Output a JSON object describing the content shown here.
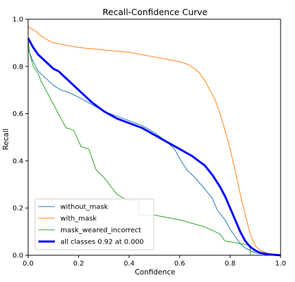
{
  "chart_data": {
    "type": "line",
    "title": "Recall-Confidence Curve",
    "xlabel": "Confidence",
    "ylabel": "Recall",
    "xlim": [
      0,
      1
    ],
    "ylim": [
      0,
      1
    ],
    "xticks": [
      "0.0",
      "0.2",
      "0.4",
      "0.6",
      "0.8",
      "1.0"
    ],
    "yticks": [
      "0.0",
      "0.2",
      "0.4",
      "0.6",
      "0.8",
      "1.0"
    ],
    "grid": false,
    "legend_position": "lower-left",
    "series": [
      {
        "name": "without_mask",
        "color": "#1f77b4",
        "width": 1,
        "x": [
          0.0,
          0.005,
          0.02,
          0.04,
          0.06,
          0.08,
          0.1,
          0.13,
          0.16,
          0.2,
          0.25,
          0.3,
          0.35,
          0.4,
          0.45,
          0.5,
          0.55,
          0.58,
          0.6,
          0.63,
          0.66,
          0.7,
          0.73,
          0.75,
          0.78,
          0.8,
          0.82,
          0.84,
          0.86,
          0.88,
          0.9,
          0.92,
          0.95,
          1.0
        ],
        "y": [
          0.87,
          0.86,
          0.82,
          0.78,
          0.76,
          0.74,
          0.72,
          0.7,
          0.69,
          0.67,
          0.64,
          0.61,
          0.59,
          0.57,
          0.55,
          0.52,
          0.48,
          0.45,
          0.41,
          0.36,
          0.33,
          0.28,
          0.24,
          0.19,
          0.15,
          0.11,
          0.08,
          0.05,
          0.03,
          0.02,
          0.01,
          0.006,
          0.003,
          0.0
        ]
      },
      {
        "name": "with_mask",
        "color": "#ff7f0e",
        "width": 1,
        "x": [
          0.0,
          0.01,
          0.03,
          0.05,
          0.08,
          0.1,
          0.15,
          0.2,
          0.25,
          0.3,
          0.35,
          0.4,
          0.45,
          0.5,
          0.55,
          0.6,
          0.63,
          0.66,
          0.68,
          0.7,
          0.72,
          0.74,
          0.76,
          0.78,
          0.8,
          0.82,
          0.84,
          0.86,
          0.88,
          0.9,
          0.92,
          0.95,
          1.0
        ],
        "y": [
          0.97,
          0.96,
          0.95,
          0.93,
          0.91,
          0.9,
          0.89,
          0.88,
          0.875,
          0.87,
          0.865,
          0.86,
          0.85,
          0.84,
          0.83,
          0.82,
          0.81,
          0.79,
          0.77,
          0.74,
          0.7,
          0.66,
          0.6,
          0.53,
          0.45,
          0.36,
          0.26,
          0.17,
          0.09,
          0.04,
          0.02,
          0.008,
          0.0
        ]
      },
      {
        "name": "mask_weared_incorrect",
        "color": "#2ca02c",
        "width": 1,
        "x": [
          0.0,
          0.005,
          0.01,
          0.02,
          0.04,
          0.05,
          0.07,
          0.09,
          0.12,
          0.15,
          0.18,
          0.21,
          0.24,
          0.27,
          0.3,
          0.35,
          0.38,
          0.41,
          0.44,
          0.44,
          0.5,
          0.6,
          0.7,
          0.76,
          0.78,
          0.84,
          0.88,
          0.88
        ],
        "y": [
          0.92,
          0.86,
          0.84,
          0.8,
          0.77,
          0.74,
          0.7,
          0.66,
          0.6,
          0.54,
          0.53,
          0.46,
          0.45,
          0.36,
          0.33,
          0.26,
          0.24,
          0.23,
          0.23,
          0.17,
          0.17,
          0.15,
          0.12,
          0.09,
          0.06,
          0.05,
          0.04,
          0.0
        ]
      },
      {
        "name": "all classes 0.92 at 0.000",
        "color": "#0000ff",
        "width": 3,
        "x": [
          0.0,
          0.01,
          0.02,
          0.04,
          0.06,
          0.08,
          0.1,
          0.12,
          0.15,
          0.18,
          0.2,
          0.25,
          0.3,
          0.35,
          0.4,
          0.45,
          0.5,
          0.55,
          0.6,
          0.65,
          0.7,
          0.73,
          0.76,
          0.78,
          0.8,
          0.82,
          0.84,
          0.86,
          0.88,
          0.9,
          0.92,
          0.95,
          1.0
        ],
        "y": [
          0.92,
          0.9,
          0.88,
          0.85,
          0.83,
          0.81,
          0.79,
          0.78,
          0.75,
          0.72,
          0.7,
          0.65,
          0.61,
          0.58,
          0.56,
          0.54,
          0.51,
          0.48,
          0.45,
          0.42,
          0.38,
          0.34,
          0.29,
          0.25,
          0.2,
          0.15,
          0.1,
          0.06,
          0.035,
          0.02,
          0.01,
          0.004,
          0.0
        ]
      }
    ]
  }
}
